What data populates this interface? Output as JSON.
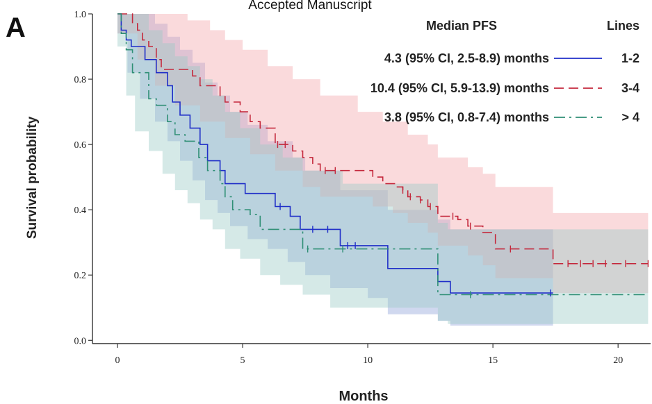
{
  "header_text": "Accepted Manuscript",
  "panel_label": "A",
  "chart_data": {
    "type": "line",
    "subtype": "kaplan-meier step curves with confidence bands",
    "xlabel": "Months",
    "ylabel": "Survival probability",
    "xlim": [
      -1,
      21.3
    ],
    "ylim": [
      -0.01,
      1.0
    ],
    "xticks": [
      0,
      5,
      10,
      15,
      20
    ],
    "yticks": [
      0.0,
      0.2,
      0.4,
      0.6,
      0.8,
      1.0
    ],
    "xtick_labels": [
      "0",
      "5",
      "10",
      "15",
      "20"
    ],
    "ytick_labels": [
      "0.0",
      "0.2",
      "0.4",
      "0.6",
      "0.8",
      "1.0"
    ],
    "grid": false,
    "legend": {
      "placement": "top-right",
      "header_left": "Median PFS",
      "header_right": "Lines",
      "entries": [
        {
          "series": 0,
          "text": "4.3 (95% CI, 2.5-8.9) months",
          "label": "1-2"
        },
        {
          "series": 1,
          "text": "10.4 (95% CI, 5.9-13.9) months",
          "label": "3-4"
        },
        {
          "series": 2,
          "text": "3.8 (95% CI, 0.8-7.4) months",
          "label": "> 4"
        }
      ]
    },
    "series": [
      {
        "name": "1-2",
        "color": "#1f2ec8",
        "band_color": "#8fa3d8",
        "dash": "solid",
        "steps": [
          [
            0,
            1.0
          ],
          [
            0.15,
            0.95
          ],
          [
            0.35,
            0.92
          ],
          [
            0.55,
            0.9
          ],
          [
            1.1,
            0.86
          ],
          [
            1.55,
            0.82
          ],
          [
            2.0,
            0.78
          ],
          [
            2.2,
            0.73
          ],
          [
            2.5,
            0.69
          ],
          [
            2.9,
            0.65
          ],
          [
            3.3,
            0.6
          ],
          [
            3.6,
            0.55
          ],
          [
            4.1,
            0.52
          ],
          [
            4.3,
            0.48
          ],
          [
            5.1,
            0.45
          ],
          [
            6.3,
            0.41
          ],
          [
            6.9,
            0.38
          ],
          [
            7.3,
            0.34
          ],
          [
            8.9,
            0.29
          ],
          [
            10.8,
            0.22
          ],
          [
            12.8,
            0.18
          ],
          [
            13.3,
            0.145
          ],
          [
            17.4,
            0.145
          ]
        ],
        "lower": [
          [
            0,
            0.94
          ],
          [
            0.4,
            0.82
          ],
          [
            0.9,
            0.74
          ],
          [
            1.5,
            0.67
          ],
          [
            2.0,
            0.61
          ],
          [
            2.5,
            0.55
          ],
          [
            3.0,
            0.49
          ],
          [
            3.5,
            0.43
          ],
          [
            4.0,
            0.39
          ],
          [
            4.5,
            0.35
          ],
          [
            5.2,
            0.31
          ],
          [
            6.0,
            0.28
          ],
          [
            6.8,
            0.24
          ],
          [
            7.5,
            0.2
          ],
          [
            8.5,
            0.16
          ],
          [
            10.0,
            0.13
          ],
          [
            10.8,
            0.08
          ],
          [
            12.8,
            0.06
          ],
          [
            13.3,
            0.045
          ],
          [
            17.4,
            0.045
          ]
        ],
        "upper": [
          [
            0,
            1.0
          ],
          [
            1.0,
            1.0
          ],
          [
            1.5,
            0.97
          ],
          [
            2.0,
            0.93
          ],
          [
            2.5,
            0.89
          ],
          [
            3.0,
            0.85
          ],
          [
            3.5,
            0.79
          ],
          [
            4.0,
            0.75
          ],
          [
            4.5,
            0.7
          ],
          [
            5.2,
            0.66
          ],
          [
            6.0,
            0.61
          ],
          [
            7.0,
            0.56
          ],
          [
            7.5,
            0.52
          ],
          [
            8.9,
            0.46
          ],
          [
            10.8,
            0.4
          ],
          [
            12.8,
            0.37
          ],
          [
            13.3,
            0.34
          ],
          [
            17.4,
            0.34
          ]
        ],
        "censor_x": [
          6.5,
          7.8,
          8.4,
          9.2,
          9.5,
          17.3
        ]
      },
      {
        "name": "3-4",
        "color": "#c4283c",
        "band_color": "#f2a7ab",
        "dash": "dashed",
        "steps": [
          [
            0,
            1.0
          ],
          [
            0.6,
            0.97
          ],
          [
            0.8,
            0.95
          ],
          [
            1.0,
            0.92
          ],
          [
            1.25,
            0.9
          ],
          [
            1.55,
            0.86
          ],
          [
            1.75,
            0.83
          ],
          [
            3.0,
            0.81
          ],
          [
            3.3,
            0.78
          ],
          [
            4.1,
            0.75
          ],
          [
            4.3,
            0.73
          ],
          [
            4.9,
            0.7
          ],
          [
            5.3,
            0.67
          ],
          [
            5.7,
            0.65
          ],
          [
            6.3,
            0.6
          ],
          [
            7.0,
            0.58
          ],
          [
            7.4,
            0.56
          ],
          [
            7.8,
            0.54
          ],
          [
            8.1,
            0.52
          ],
          [
            10.2,
            0.5
          ],
          [
            10.6,
            0.48
          ],
          [
            11.1,
            0.47
          ],
          [
            11.4,
            0.46
          ],
          [
            11.6,
            0.44
          ],
          [
            12.1,
            0.43
          ],
          [
            12.4,
            0.41
          ],
          [
            12.8,
            0.38
          ],
          [
            13.6,
            0.37
          ],
          [
            14.0,
            0.35
          ],
          [
            14.6,
            0.33
          ],
          [
            15.1,
            0.28
          ],
          [
            17.4,
            0.235
          ],
          [
            21.2,
            0.235
          ]
        ],
        "lower": [
          [
            0,
            0.94
          ],
          [
            0.8,
            0.86
          ],
          [
            1.5,
            0.78
          ],
          [
            2.3,
            0.72
          ],
          [
            3.3,
            0.67
          ],
          [
            4.3,
            0.62
          ],
          [
            5.3,
            0.57
          ],
          [
            6.3,
            0.52
          ],
          [
            7.4,
            0.47
          ],
          [
            8.1,
            0.44
          ],
          [
            10.2,
            0.41
          ],
          [
            11.0,
            0.39
          ],
          [
            11.6,
            0.36
          ],
          [
            12.4,
            0.33
          ],
          [
            12.8,
            0.29
          ],
          [
            14.0,
            0.26
          ],
          [
            14.6,
            0.23
          ],
          [
            15.1,
            0.19
          ],
          [
            17.4,
            0.145
          ],
          [
            21.2,
            0.145
          ]
        ],
        "upper": [
          [
            0,
            1.0
          ],
          [
            2.0,
            1.0
          ],
          [
            2.8,
            0.98
          ],
          [
            3.7,
            0.95
          ],
          [
            4.3,
            0.92
          ],
          [
            5.0,
            0.89
          ],
          [
            6.0,
            0.84
          ],
          [
            7.0,
            0.8
          ],
          [
            8.1,
            0.75
          ],
          [
            9.6,
            0.7
          ],
          [
            10.6,
            0.67
          ],
          [
            11.6,
            0.63
          ],
          [
            12.4,
            0.6
          ],
          [
            12.8,
            0.56
          ],
          [
            14.0,
            0.53
          ],
          [
            14.6,
            0.51
          ],
          [
            15.1,
            0.47
          ],
          [
            17.4,
            0.39
          ],
          [
            21.2,
            0.39
          ]
        ],
        "censor_x": [
          6.4,
          6.7,
          8.3,
          8.7,
          11.4,
          11.7,
          12.1,
          12.5,
          13.4,
          14.1,
          15.7,
          18.0,
          18.5,
          19.0,
          19.5,
          20.3,
          21.2
        ]
      },
      {
        "name": "> 4",
        "color": "#2f8f75",
        "band_color": "#9bcbc6",
        "dash": "dashdot",
        "steps": [
          [
            0,
            1.0
          ],
          [
            0.15,
            0.94
          ],
          [
            0.35,
            0.89
          ],
          [
            0.6,
            0.82
          ],
          [
            1.25,
            0.74
          ],
          [
            1.55,
            0.72
          ],
          [
            2.0,
            0.67
          ],
          [
            2.3,
            0.63
          ],
          [
            2.7,
            0.61
          ],
          [
            3.25,
            0.56
          ],
          [
            3.6,
            0.52
          ],
          [
            4.1,
            0.48
          ],
          [
            4.3,
            0.44
          ],
          [
            4.6,
            0.4
          ],
          [
            5.3,
            0.385
          ],
          [
            5.7,
            0.34
          ],
          [
            7.4,
            0.28
          ],
          [
            12.8,
            0.14
          ],
          [
            21.2,
            0.14
          ]
        ],
        "lower": [
          [
            0,
            0.9
          ],
          [
            0.35,
            0.75
          ],
          [
            0.7,
            0.64
          ],
          [
            1.25,
            0.58
          ],
          [
            1.8,
            0.51
          ],
          [
            2.3,
            0.46
          ],
          [
            2.8,
            0.42
          ],
          [
            3.3,
            0.37
          ],
          [
            3.8,
            0.34
          ],
          [
            4.3,
            0.28
          ],
          [
            4.9,
            0.25
          ],
          [
            5.7,
            0.2
          ],
          [
            6.5,
            0.17
          ],
          [
            7.4,
            0.14
          ],
          [
            8.5,
            0.1
          ],
          [
            12.8,
            0.06
          ],
          [
            13.2,
            0.05
          ],
          [
            21.2,
            0.05
          ]
        ],
        "upper": [
          [
            0,
            1.0
          ],
          [
            1.0,
            1.0
          ],
          [
            1.25,
            0.95
          ],
          [
            1.8,
            0.91
          ],
          [
            2.3,
            0.87
          ],
          [
            2.8,
            0.84
          ],
          [
            3.3,
            0.8
          ],
          [
            3.8,
            0.75
          ],
          [
            4.3,
            0.7
          ],
          [
            4.9,
            0.65
          ],
          [
            5.7,
            0.6
          ],
          [
            6.6,
            0.56
          ],
          [
            7.4,
            0.52
          ],
          [
            9.0,
            0.48
          ],
          [
            12.8,
            0.36
          ],
          [
            13.2,
            0.34
          ],
          [
            21.2,
            0.34
          ]
        ],
        "censor_x": [
          7.6,
          9.0,
          14.1
        ]
      }
    ]
  }
}
